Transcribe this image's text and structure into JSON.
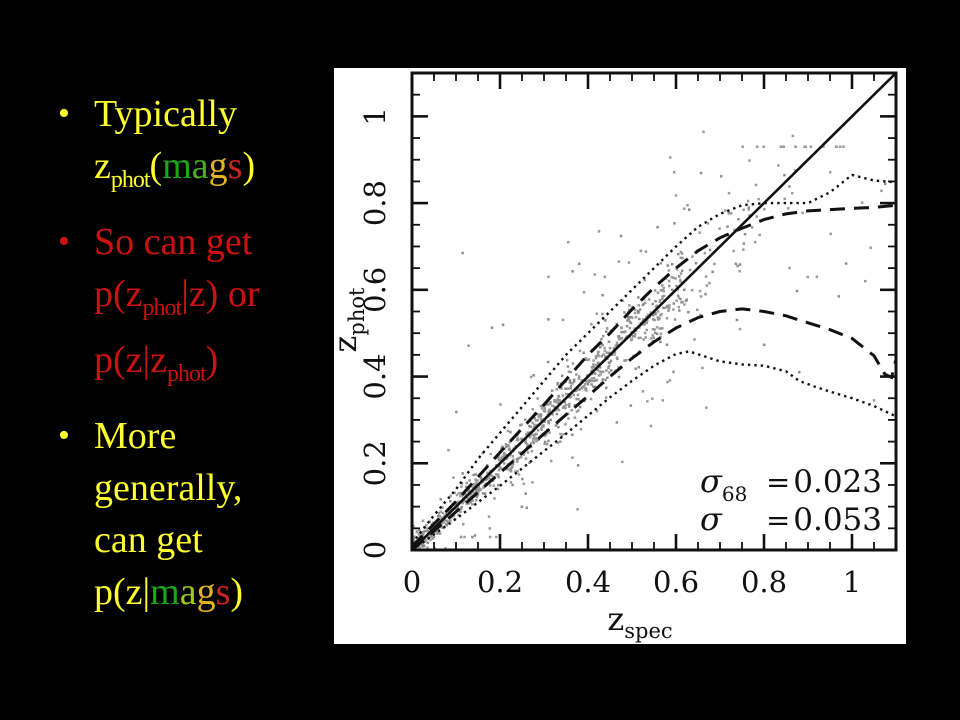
{
  "slide": {
    "background": "#000000",
    "bullets": [
      {
        "marker": "•",
        "marker_color": "#ffff2e",
        "lines": [
          {
            "segments": [
              {
                "text": "Typically",
                "color": "#ffff2e"
              }
            ]
          },
          {
            "segments": [
              {
                "text": "z",
                "color": "#ffff2e"
              },
              {
                "text": "phot",
                "color": "#ffff2e",
                "style": "sub"
              },
              {
                "text": "(",
                "color": "#ffff2e"
              },
              {
                "text": "m",
                "color": "#18a818"
              },
              {
                "text": "a",
                "color": "#4cae18"
              },
              {
                "text": "g",
                "color": "#e0b41e"
              },
              {
                "text": "s",
                "color": "#cc2222"
              },
              {
                "text": ")",
                "color": "#ffff2e"
              }
            ]
          }
        ]
      },
      {
        "marker": "•",
        "marker_color": "#cc1111",
        "lines": [
          {
            "segments": [
              {
                "text": "So can get",
                "color": "#cc1111"
              }
            ]
          },
          {
            "segments": [
              {
                "text": "p(z",
                "color": "#cc1111"
              },
              {
                "text": "phot",
                "color": "#cc1111",
                "style": "sub"
              },
              {
                "text": "|z) or",
                "color": "#cc1111"
              }
            ]
          },
          {
            "segments": [
              {
                "text": "p(z|z",
                "color": "#cc1111"
              },
              {
                "text": "phot",
                "color": "#cc1111",
                "style": "sub"
              },
              {
                "text": ")",
                "color": "#cc1111"
              }
            ]
          }
        ]
      },
      {
        "marker": "•",
        "marker_color": "#ffff2e",
        "lines": [
          {
            "segments": [
              {
                "text": "More",
                "color": "#ffff2e"
              }
            ]
          },
          {
            "segments": [
              {
                "text": "generally,",
                "color": "#ffff2e"
              }
            ]
          },
          {
            "segments": [
              {
                "text": "can get",
                "color": "#ffff2e"
              }
            ]
          },
          {
            "segments": [
              {
                "text": "p(z|",
                "color": "#ffff2e"
              },
              {
                "text": "m",
                "color": "#18a818"
              },
              {
                "text": "a",
                "color": "#9ec41e"
              },
              {
                "text": "g",
                "color": "#e0b41e"
              },
              {
                "text": "s",
                "color": "#cc2222"
              },
              {
                "text": ")",
                "color": "#ffff2e"
              }
            ]
          }
        ]
      }
    ]
  },
  "chart_data": {
    "type": "scatter",
    "title": "",
    "xlabel": "z",
    "xlabel_sub": "spec",
    "ylabel": "z",
    "ylabel_sub": "phot",
    "xlim": [
      0,
      1.1
    ],
    "ylim": [
      0,
      1.1
    ],
    "grid": false,
    "background": "#ffffff",
    "axis_color": "#111111",
    "marker_color": "#9a9a9a",
    "x_ticks_major": [
      0,
      0.2,
      0.4,
      0.6,
      0.8,
      1.0
    ],
    "x_tick_labels": [
      "0",
      "0.2",
      "0.4",
      "0.6",
      "0.8",
      "1"
    ],
    "y_ticks_major": [
      0,
      0.2,
      0.4,
      0.6,
      0.8,
      1.0
    ],
    "y_tick_labels": [
      "0",
      "0.2",
      "0.4",
      "0.6",
      "0.8",
      "1"
    ],
    "minor_tick_step": 0.05,
    "annotations": [
      {
        "symbol": "σ",
        "subscript": "68",
        "equals": "=",
        "value": "0.023"
      },
      {
        "symbol": "σ",
        "subscript": "",
        "equals": "=",
        "value": "0.053"
      }
    ],
    "identity_line": [
      [
        0,
        0
      ],
      [
        1.1,
        1.1
      ]
    ],
    "envelopes": [
      {
        "name": "outer-upper-envelope",
        "style": "dotted",
        "points": [
          [
            0,
            0.015
          ],
          [
            0.05,
            0.08
          ],
          [
            0.1,
            0.14
          ],
          [
            0.15,
            0.21
          ],
          [
            0.2,
            0.27
          ],
          [
            0.25,
            0.33
          ],
          [
            0.3,
            0.39
          ],
          [
            0.35,
            0.45
          ],
          [
            0.4,
            0.5
          ],
          [
            0.45,
            0.55
          ],
          [
            0.5,
            0.6
          ],
          [
            0.55,
            0.65
          ],
          [
            0.6,
            0.7
          ],
          [
            0.65,
            0.745
          ],
          [
            0.7,
            0.775
          ],
          [
            0.75,
            0.795
          ],
          [
            0.8,
            0.8
          ],
          [
            0.85,
            0.8
          ],
          [
            0.9,
            0.8
          ],
          [
            0.95,
            0.825
          ],
          [
            1.0,
            0.865
          ],
          [
            1.05,
            0.852
          ],
          [
            1.1,
            0.848
          ]
        ]
      },
      {
        "name": "inner-upper-envelope",
        "style": "dashed",
        "points": [
          [
            0,
            0.008
          ],
          [
            0.1,
            0.112
          ],
          [
            0.2,
            0.225
          ],
          [
            0.3,
            0.335
          ],
          [
            0.4,
            0.45
          ],
          [
            0.45,
            0.5
          ],
          [
            0.5,
            0.555
          ],
          [
            0.55,
            0.605
          ],
          [
            0.6,
            0.65
          ],
          [
            0.65,
            0.69
          ],
          [
            0.7,
            0.72
          ],
          [
            0.75,
            0.742
          ],
          [
            0.8,
            0.762
          ],
          [
            0.85,
            0.775
          ],
          [
            0.9,
            0.782
          ],
          [
            0.95,
            0.785
          ],
          [
            1.0,
            0.788
          ],
          [
            1.05,
            0.79
          ],
          [
            1.1,
            0.795
          ]
        ]
      },
      {
        "name": "inner-lower-envelope",
        "style": "dashed",
        "points": [
          [
            0,
            0
          ],
          [
            0.1,
            0.088
          ],
          [
            0.2,
            0.178
          ],
          [
            0.3,
            0.268
          ],
          [
            0.35,
            0.312
          ],
          [
            0.4,
            0.355
          ],
          [
            0.45,
            0.4
          ],
          [
            0.5,
            0.442
          ],
          [
            0.55,
            0.48
          ],
          [
            0.6,
            0.512
          ],
          [
            0.65,
            0.536
          ],
          [
            0.7,
            0.55
          ],
          [
            0.75,
            0.556
          ],
          [
            0.8,
            0.55
          ],
          [
            0.85,
            0.54
          ],
          [
            0.9,
            0.524
          ],
          [
            0.95,
            0.508
          ],
          [
            1.0,
            0.488
          ],
          [
            1.05,
            0.448
          ],
          [
            1.075,
            0.405
          ],
          [
            1.09,
            0.398
          ],
          [
            1.1,
            0.44
          ]
        ]
      },
      {
        "name": "outer-lower-envelope",
        "style": "dotted",
        "points": [
          [
            0,
            0
          ],
          [
            0.1,
            0.072
          ],
          [
            0.2,
            0.148
          ],
          [
            0.3,
            0.228
          ],
          [
            0.35,
            0.268
          ],
          [
            0.4,
            0.31
          ],
          [
            0.45,
            0.352
          ],
          [
            0.5,
            0.39
          ],
          [
            0.55,
            0.425
          ],
          [
            0.6,
            0.452
          ],
          [
            0.63,
            0.458
          ],
          [
            0.66,
            0.448
          ],
          [
            0.7,
            0.435
          ],
          [
            0.75,
            0.428
          ],
          [
            0.8,
            0.425
          ],
          [
            0.85,
            0.412
          ],
          [
            0.88,
            0.39
          ],
          [
            0.92,
            0.375
          ],
          [
            0.96,
            0.362
          ],
          [
            1.0,
            0.35
          ],
          [
            1.05,
            0.332
          ],
          [
            1.1,
            0.308
          ]
        ]
      }
    ],
    "scatter_generator": {
      "seed": 7,
      "core": {
        "n": 780,
        "x_max": 0.62,
        "x_power": 1.25,
        "sigma_base": 0.01,
        "sigma_slope": 0.05
      },
      "mid": {
        "n": 150,
        "x_max": 0.68,
        "sigma_base": 0.014,
        "sigma_slope": 0.07,
        "sigma_scale": 2.3
      },
      "tail": {
        "n": 45,
        "x_min": 0.6,
        "x_max": 0.88,
        "sigma": 0.05
      },
      "outliers": {
        "n": 75,
        "x_min": 0.08,
        "x_max": 1.08,
        "spread": 0.7,
        "y_min": 0.03,
        "y_max": 0.93
      }
    },
    "extra_points": [
      [
        0.115,
        0.685
      ],
      [
        0.31,
        0.63
      ],
      [
        0.355,
        0.71
      ],
      [
        0.38,
        0.66
      ],
      [
        0.425,
        0.735
      ],
      [
        0.42,
        0.545
      ],
      [
        0.475,
        0.724
      ],
      [
        0.47,
        0.665
      ],
      [
        0.52,
        0.69
      ],
      [
        0.63,
        0.785
      ],
      [
        0.855,
        0.788
      ],
      [
        0.67,
        0.61
      ],
      [
        0.74,
        0.655
      ],
      [
        0.78,
        0.71
      ],
      [
        0.92,
        0.63
      ],
      [
        0.97,
        0.585
      ],
      [
        1.03,
        0.62
      ],
      [
        1.05,
        0.345
      ],
      [
        0.88,
        0.41
      ],
      [
        0.57,
        0.345
      ],
      [
        0.66,
        0.42
      ]
    ]
  }
}
